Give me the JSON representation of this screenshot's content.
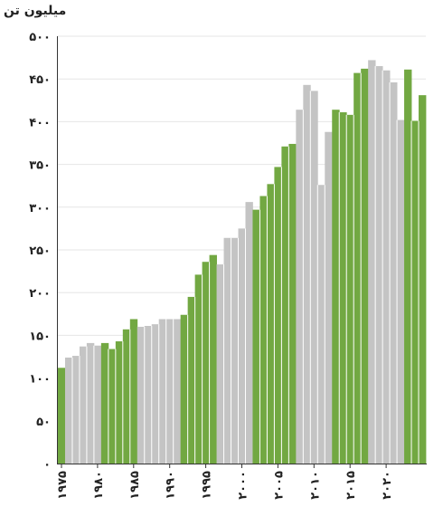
{
  "chart_data": {
    "type": "bar",
    "ylabel": "میلیون تن",
    "ylim": [
      0,
      500
    ],
    "yticks": [
      {
        "value": 0,
        "label": "۰"
      },
      {
        "value": 50,
        "label": "۵۰"
      },
      {
        "value": 100,
        "label": "۱۰۰"
      },
      {
        "value": 150,
        "label": "۱۵۰"
      },
      {
        "value": 200,
        "label": "۲۰۰"
      },
      {
        "value": 250,
        "label": "۲۵۰"
      },
      {
        "value": 300,
        "label": "۳۰۰"
      },
      {
        "value": 350,
        "label": "۳۵۰"
      },
      {
        "value": 400,
        "label": "۴۰۰"
      },
      {
        "value": 450,
        "label": "۴۵۰"
      },
      {
        "value": 500,
        "label": "۵۰۰"
      }
    ],
    "xticks": [
      {
        "year": 1975,
        "label": "۱۹۷۵"
      },
      {
        "year": 1980,
        "label": "۱۹۸۰"
      },
      {
        "year": 1985,
        "label": "۱۹۸۵"
      },
      {
        "year": 1990,
        "label": "۱۹۹۰"
      },
      {
        "year": 1995,
        "label": "۱۹۹۵"
      },
      {
        "year": 2000,
        "label": "۲۰۰۰"
      },
      {
        "year": 2005,
        "label": "۲۰۰۵"
      },
      {
        "year": 2010,
        "label": "۲۰۱۰"
      },
      {
        "year": 2015,
        "label": "۲۰۱۵"
      },
      {
        "year": 2020,
        "label": "۲۰۲۰"
      }
    ],
    "grid": true,
    "colors": {
      "green": "#72a842",
      "gray": "#c4c4c4",
      "axis": "#333333",
      "grid": "#e6e6e6"
    },
    "bars": [
      {
        "year": 1975,
        "value": 112,
        "color": "green"
      },
      {
        "year": 1976,
        "value": 124,
        "color": "gray"
      },
      {
        "year": 1977,
        "value": 126,
        "color": "gray"
      },
      {
        "year": 1978,
        "value": 137,
        "color": "gray"
      },
      {
        "year": 1979,
        "value": 141,
        "color": "gray"
      },
      {
        "year": 1980,
        "value": 138,
        "color": "gray"
      },
      {
        "year": 1981,
        "value": 141,
        "color": "green"
      },
      {
        "year": 1982,
        "value": 134,
        "color": "green"
      },
      {
        "year": 1983,
        "value": 143,
        "color": "green"
      },
      {
        "year": 1984,
        "value": 157,
        "color": "green"
      },
      {
        "year": 1985,
        "value": 169,
        "color": "green"
      },
      {
        "year": 1986,
        "value": 160,
        "color": "gray"
      },
      {
        "year": 1987,
        "value": 161,
        "color": "gray"
      },
      {
        "year": 1988,
        "value": 163,
        "color": "gray"
      },
      {
        "year": 1989,
        "value": 169,
        "color": "gray"
      },
      {
        "year": 1990,
        "value": 169,
        "color": "gray"
      },
      {
        "year": 1991,
        "value": 169,
        "color": "gray"
      },
      {
        "year": 1992,
        "value": 174,
        "color": "green"
      },
      {
        "year": 1993,
        "value": 195,
        "color": "green"
      },
      {
        "year": 1994,
        "value": 221,
        "color": "green"
      },
      {
        "year": 1995,
        "value": 236,
        "color": "green"
      },
      {
        "year": 1996,
        "value": 244,
        "color": "green"
      },
      {
        "year": 1997,
        "value": 233,
        "color": "gray"
      },
      {
        "year": 1998,
        "value": 264,
        "color": "gray"
      },
      {
        "year": 1999,
        "value": 264,
        "color": "gray"
      },
      {
        "year": 2000,
        "value": 275,
        "color": "gray"
      },
      {
        "year": 2001,
        "value": 306,
        "color": "gray"
      },
      {
        "year": 2002,
        "value": 297,
        "color": "green"
      },
      {
        "year": 2003,
        "value": 313,
        "color": "green"
      },
      {
        "year": 2004,
        "value": 327,
        "color": "green"
      },
      {
        "year": 2005,
        "value": 347,
        "color": "green"
      },
      {
        "year": 2006,
        "value": 371,
        "color": "green"
      },
      {
        "year": 2007,
        "value": 374,
        "color": "green"
      },
      {
        "year": 2008,
        "value": 414,
        "color": "gray"
      },
      {
        "year": 2009,
        "value": 443,
        "color": "gray"
      },
      {
        "year": 2010,
        "value": 436,
        "color": "gray"
      },
      {
        "year": 2011,
        "value": 326,
        "color": "gray"
      },
      {
        "year": 2012,
        "value": 388,
        "color": "gray"
      },
      {
        "year": 2013,
        "value": 414,
        "color": "green"
      },
      {
        "year": 2014,
        "value": 411,
        "color": "green"
      },
      {
        "year": 2015,
        "value": 408,
        "color": "green"
      },
      {
        "year": 2016,
        "value": 457,
        "color": "green"
      },
      {
        "year": 2017,
        "value": 462,
        "color": "green"
      },
      {
        "year": 2018,
        "value": 472,
        "color": "gray"
      },
      {
        "year": 2019,
        "value": 465,
        "color": "gray"
      },
      {
        "year": 2020,
        "value": 460,
        "color": "gray"
      },
      {
        "year": 2021,
        "value": 446,
        "color": "gray"
      },
      {
        "year": 2022,
        "value": 402,
        "color": "gray"
      },
      {
        "year": 2023,
        "value": 461,
        "color": "green"
      },
      {
        "year": 2024,
        "value": 401,
        "color": "green"
      },
      {
        "year": 2025,
        "value": 431,
        "color": "green"
      }
    ]
  }
}
